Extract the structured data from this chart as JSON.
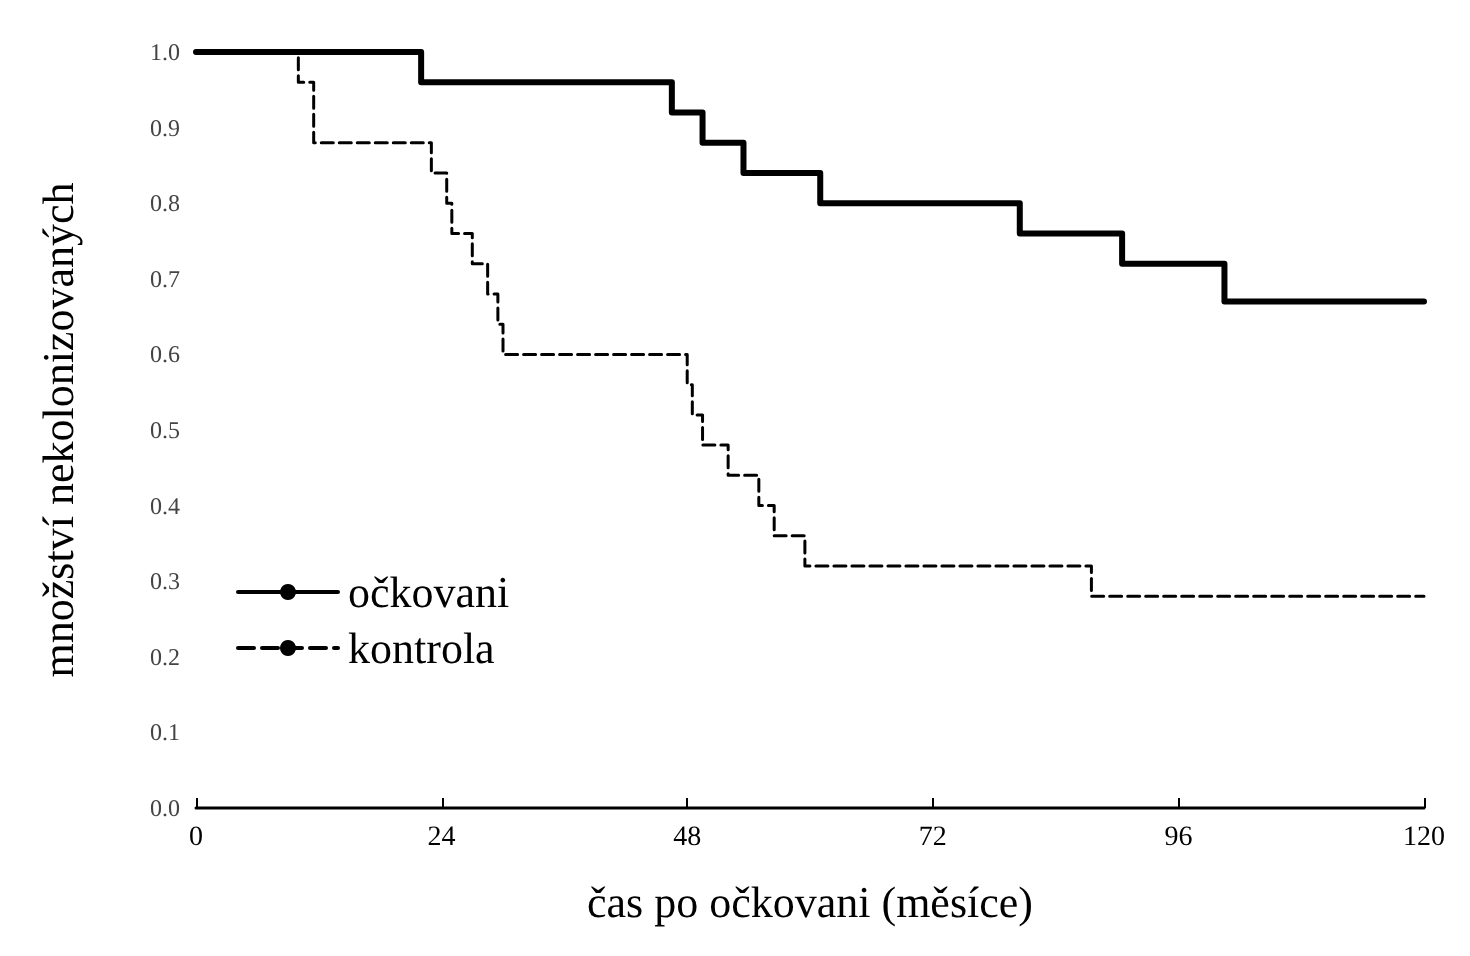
{
  "chart_data": {
    "type": "step",
    "xlabel": "čas po očkovani (měsíce)",
    "ylabel": "množství nekolonizovaných",
    "xlim": [
      0,
      120
    ],
    "xticks": [
      0,
      24,
      48,
      72,
      96,
      120
    ],
    "ylim": [
      0,
      1
    ],
    "yticks": [
      {
        "value": 0,
        "label": "0.0"
      },
      {
        "value": 0.1,
        "label": "0.1"
      },
      {
        "value": 0.2,
        "label": "0.2"
      },
      {
        "value": 0.3,
        "label": "0.3"
      },
      {
        "value": 0.4,
        "label": "0.4"
      },
      {
        "value": 0.5,
        "label": "0.5"
      },
      {
        "value": 0.6,
        "label": "0.6"
      },
      {
        "value": 0.7,
        "label": "0.7"
      },
      {
        "value": 0.8,
        "label": "0.8"
      },
      {
        "value": 0.9,
        "label": "0.9"
      },
      {
        "value": 1,
        "label": "1.0"
      }
    ],
    "grid": false,
    "legend": "bottom left",
    "marker": "none",
    "series": [
      {
        "name": "očkovani",
        "color": "#000000",
        "line_style": "solid",
        "x": [
          0,
          22,
          46.5,
          49.5,
          53.5,
          61,
          80.5,
          90.5,
          100.5,
          120
        ],
        "values": [
          1.0,
          0.96,
          0.92,
          0.88,
          0.84,
          0.8,
          0.76,
          0.72,
          0.67,
          0.67
        ]
      },
      {
        "name": "kontrola",
        "color": "#000000",
        "line_style": "dashed",
        "x": [
          0,
          10,
          11.5,
          23,
          24.5,
          25,
          27,
          28.5,
          29.5,
          30,
          48,
          48.5,
          49.5,
          52,
          55,
          56.5,
          59.5,
          87.5,
          120
        ],
        "values": [
          1.0,
          0.96,
          0.88,
          0.84,
          0.8,
          0.76,
          0.72,
          0.68,
          0.64,
          0.6,
          0.56,
          0.52,
          0.48,
          0.44,
          0.4,
          0.36,
          0.32,
          0.28,
          0.28
        ]
      }
    ]
  }
}
